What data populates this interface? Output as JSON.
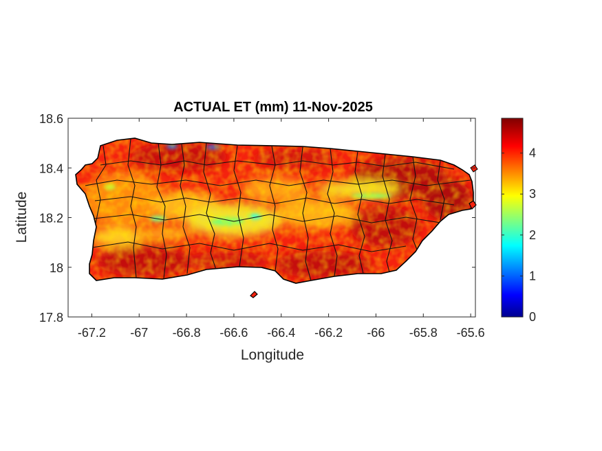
{
  "title": "ACTUAL ET (mm) 11-Nov-2025",
  "xlabel": "Longitude",
  "ylabel": "Latitude",
  "x_ticks": [
    "-67.2",
    "-67",
    "-66.8",
    "-66.6",
    "-66.4",
    "-66.2",
    "-66",
    "-65.8",
    "-65.6"
  ],
  "y_ticks": [
    "18.6",
    "18.4",
    "18.2",
    "18",
    "17.8"
  ],
  "colorbar_ticks": [
    "4",
    "3",
    "2",
    "1",
    "0"
  ],
  "chart_data": {
    "type": "heatmap",
    "title": "ACTUAL ET (mm) 11-Nov-2025",
    "xlabel": "Longitude",
    "ylabel": "Latitude",
    "xlim": [
      -67.3,
      -65.58
    ],
    "ylim": [
      17.8,
      18.6
    ],
    "x_ticks": [
      -67.2,
      -67,
      -66.8,
      -66.6,
      -66.4,
      -66.2,
      -66,
      -65.8,
      -65.6
    ],
    "y_ticks": [
      17.8,
      18.0,
      18.2,
      18.4,
      18.6
    ],
    "colorbar": {
      "colormap": "jet",
      "range": [
        0,
        4.85
      ],
      "ticks": [
        0,
        1,
        2,
        3,
        4
      ]
    },
    "region": "Puerto Rico",
    "value_summary": {
      "typical_range": [
        2.5,
        4.8
      ],
      "coast_south_typical": 4.5,
      "central_interior_typical": 3.0
    }
  }
}
